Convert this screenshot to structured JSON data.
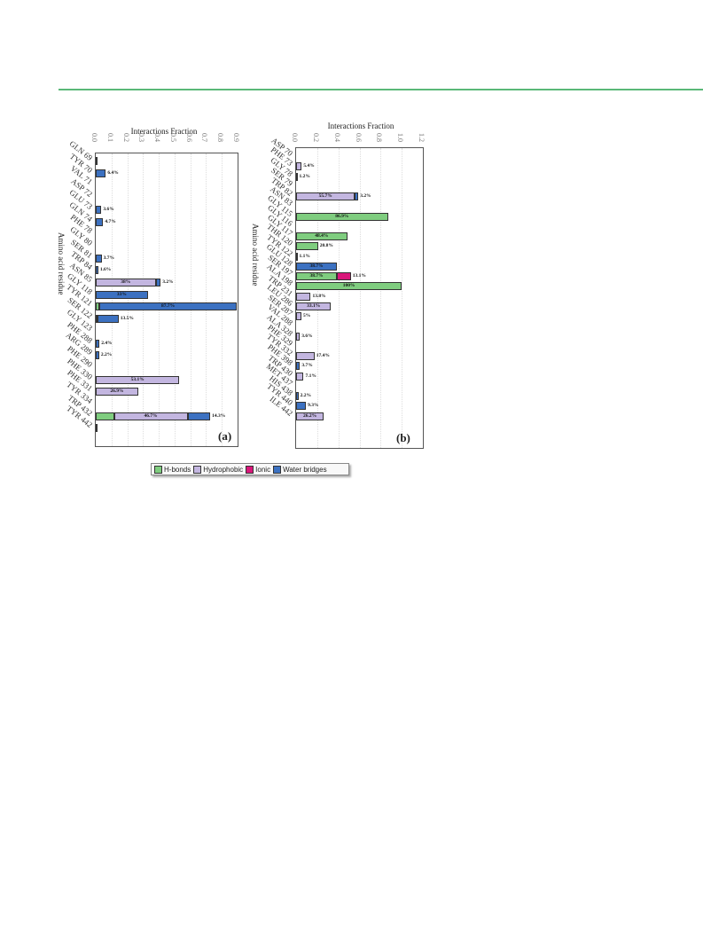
{
  "legend": [
    {
      "name": "H-bonds",
      "color": "#7fcd7f"
    },
    {
      "name": "Hydrophobic",
      "color": "#c3b6e0"
    },
    {
      "name": "Ionic",
      "color": "#d9177a"
    },
    {
      "name": "Water bridges",
      "color": "#3c71c1"
    }
  ],
  "chart_data": [
    {
      "type": "bar",
      "panel_label": "(a)",
      "orientation": "horizontal-stacked",
      "xlabel": "Interactions Fraction",
      "ylabel": "Amino acid residue",
      "xlim": [
        0,
        0.9
      ],
      "ticks": [
        "0.0",
        "0.1",
        "0.2",
        "0.3",
        "0.4",
        "0.5",
        "0.6",
        "0.7",
        "0.8",
        "0.9"
      ],
      "categories": [
        "GLN 69",
        "TYR 70",
        "VAL 71",
        "ASP 72",
        "GLU 73",
        "GLN 74",
        "PHE 78",
        "GLY 80",
        "SER 81",
        "TRP 84",
        "ASN 85",
        "GLY 118",
        "TYR 121",
        "SER 122",
        "GLY 123",
        "PHE 288",
        "ARG 289",
        "PHE 290",
        "PHE 330",
        "PHE 331",
        "TYR 334",
        "TRP 432",
        "TYR 442"
      ],
      "series": [
        {
          "name": "H-bonds",
          "values": [
            0,
            0,
            0,
            0,
            0,
            0,
            0,
            0,
            0,
            0,
            0,
            0,
            0.02,
            0.01,
            0,
            0,
            0,
            0,
            0,
            0,
            0,
            0.116,
            0
          ]
        },
        {
          "name": "Hydrophobic",
          "values": [
            0,
            0,
            0,
            0,
            0,
            0,
            0,
            0,
            0,
            0,
            0.38,
            0,
            0,
            0,
            0,
            0,
            0,
            0,
            0.531,
            0.269,
            0,
            0.467,
            0.003
          ]
        },
        {
          "name": "Ionic",
          "values": [
            0,
            0,
            0,
            0,
            0,
            0,
            0,
            0,
            0,
            0,
            0,
            0,
            0,
            0,
            0,
            0,
            0,
            0,
            0,
            0,
            0,
            0,
            0
          ]
        },
        {
          "name": "Water bridges",
          "values": [
            0.002,
            0.064,
            0,
            0,
            0.036,
            0.047,
            0,
            0,
            0.037,
            0.016,
            0.032,
            0.33,
            0.877,
            0.135,
            0,
            0.024,
            0.022,
            0,
            0,
            0,
            0,
            0.143,
            0
          ]
        }
      ],
      "data_labels": [
        {
          "category": "TYR 70",
          "series": "Water bridges",
          "text": "6.4%"
        },
        {
          "category": "GLU 73",
          "series": "Water bridges",
          "text": "3.6%"
        },
        {
          "category": "GLN 74",
          "series": "Water bridges",
          "text": "4.7%"
        },
        {
          "category": "SER 81",
          "series": "Water bridges",
          "text": "3.7%"
        },
        {
          "category": "TRP 84",
          "series": "Water bridges",
          "text": "1.6%"
        },
        {
          "category": "ASN 85",
          "series": "Hydrophobic",
          "text": "38%"
        },
        {
          "category": "ASN 85",
          "series": "Water bridges",
          "text": "3.2%"
        },
        {
          "category": "GLY 118",
          "series": "Water bridges",
          "text": "33%"
        },
        {
          "category": "TYR 121",
          "series": "Water bridges",
          "text": "87.7%"
        },
        {
          "category": "SER 122",
          "series": "Water bridges",
          "text": "13.5%"
        },
        {
          "category": "PHE 288",
          "series": "Water bridges",
          "text": "2.4%"
        },
        {
          "category": "ARG 289",
          "series": "Water bridges",
          "text": "2.2%"
        },
        {
          "category": "PHE 330",
          "series": "Hydrophobic",
          "text": "53.1%"
        },
        {
          "category": "PHE 331",
          "series": "Hydrophobic",
          "text": "26.9%"
        },
        {
          "category": "TRP 432",
          "series": "H-bonds",
          "text": "11.6%"
        },
        {
          "category": "TRP 432",
          "series": "Hydrophobic",
          "text": "46.7%"
        },
        {
          "category": "TRP 432",
          "series": "Water bridges",
          "text": "14.3%"
        }
      ]
    },
    {
      "type": "bar",
      "panel_label": "(b)",
      "orientation": "horizontal-stacked",
      "xlabel": "Interactions Fraction",
      "ylabel": "Amino acid residue",
      "xlim": [
        0,
        1.2
      ],
      "ticks": [
        "0.0",
        "0.2",
        "0.4",
        "0.6",
        "0.8",
        "1.0",
        "1.2"
      ],
      "categories": [
        "ASP 70",
        "PHE 73",
        "GLY 78",
        "SER 79",
        "TRP 82",
        "ASN 83",
        "GLY 115",
        "GLY 116",
        "GLY 117",
        "THR 120",
        "TYR 122",
        "GLU 128",
        "SER 197",
        "ALA 198",
        "TRP 231",
        "LEU 286",
        "SER 287",
        "VAL 288",
        "ALA 328",
        "PHE 329",
        "TYR 332",
        "PHE 398",
        "TRP 430",
        "MET 437",
        "HIS 438",
        "TYR 440",
        "ILE 442"
      ],
      "series": [
        {
          "name": "H-bonds",
          "values": [
            0,
            0,
            0,
            0,
            0,
            0,
            0.869,
            0,
            0.484,
            0.208,
            0,
            0,
            0.387,
            1.0,
            0,
            0,
            0,
            0,
            0,
            0,
            0,
            0,
            0,
            0,
            0,
            0,
            0
          ]
        },
        {
          "name": "Hydrophobic",
          "values": [
            0,
            0.054,
            0,
            0,
            0.557,
            0,
            0,
            0,
            0,
            0,
            0,
            0,
            0,
            0,
            0.138,
            0.331,
            0.05,
            0,
            0.036,
            0,
            0.174,
            0,
            0.071,
            0,
            0,
            0,
            0.262
          ]
        },
        {
          "name": "Ionic",
          "values": [
            0,
            0,
            0,
            0,
            0,
            0,
            0,
            0,
            0,
            0,
            0,
            0,
            0.131,
            0,
            0,
            0,
            0,
            0,
            0,
            0,
            0,
            0,
            0,
            0,
            0,
            0,
            0
          ]
        },
        {
          "name": "Water bridges",
          "values": [
            0,
            0,
            0.012,
            0,
            0.032,
            0,
            0,
            0,
            0,
            0,
            0.011,
            0.387,
            0,
            0,
            0,
            0,
            0,
            0,
            0,
            0,
            0,
            0.037,
            0,
            0,
            0.022,
            0.093,
            0
          ]
        }
      ],
      "data_labels": [
        {
          "category": "PHE 73",
          "series": "Hydrophobic",
          "text": "5.4%"
        },
        {
          "category": "GLY 78",
          "series": "Water bridges",
          "text": "1.2%"
        },
        {
          "category": "TRP 82",
          "series": "Hydrophobic",
          "text": "55.7%"
        },
        {
          "category": "TRP 82",
          "series": "Water bridges",
          "text": "3.2%"
        },
        {
          "category": "GLY 115",
          "series": "H-bonds",
          "text": "86.9%"
        },
        {
          "category": "GLY 117",
          "series": "H-bonds",
          "text": "48.4%"
        },
        {
          "category": "THR 120",
          "series": "H-bonds",
          "text": "20.8%"
        },
        {
          "category": "TYR 122",
          "series": "Water bridges",
          "text": "1.1%"
        },
        {
          "category": "GLU 128",
          "series": "Water bridges",
          "text": "38.7%"
        },
        {
          "category": "SER 197",
          "series": "H-bonds",
          "text": "38.7%"
        },
        {
          "category": "SER 197",
          "series": "Ionic",
          "text": "13.1%"
        },
        {
          "category": "ALA 198",
          "series": "H-bonds",
          "text": "100%"
        },
        {
          "category": "TRP 231",
          "series": "Hydrophobic",
          "text": "13.8%"
        },
        {
          "category": "LEU 286",
          "series": "Hydrophobic",
          "text": "33.1%"
        },
        {
          "category": "SER 287",
          "series": "Hydrophobic",
          "text": "5%"
        },
        {
          "category": "ALA 328",
          "series": "Hydrophobic",
          "text": "3.6%"
        },
        {
          "category": "TYR 332",
          "series": "Hydrophobic",
          "text": "17.4%"
        },
        {
          "category": "PHE 398",
          "series": "Water bridges",
          "text": "3.7%"
        },
        {
          "category": "TRP 430",
          "series": "Hydrophobic",
          "text": "7.1%"
        },
        {
          "category": "HIS 438",
          "series": "Water bridges",
          "text": "2.2%"
        },
        {
          "category": "TYR 440",
          "series": "Water bridges",
          "text": "9.3%"
        },
        {
          "category": "ILE 442",
          "series": "Hydrophobic",
          "text": "26.2%"
        }
      ]
    }
  ]
}
